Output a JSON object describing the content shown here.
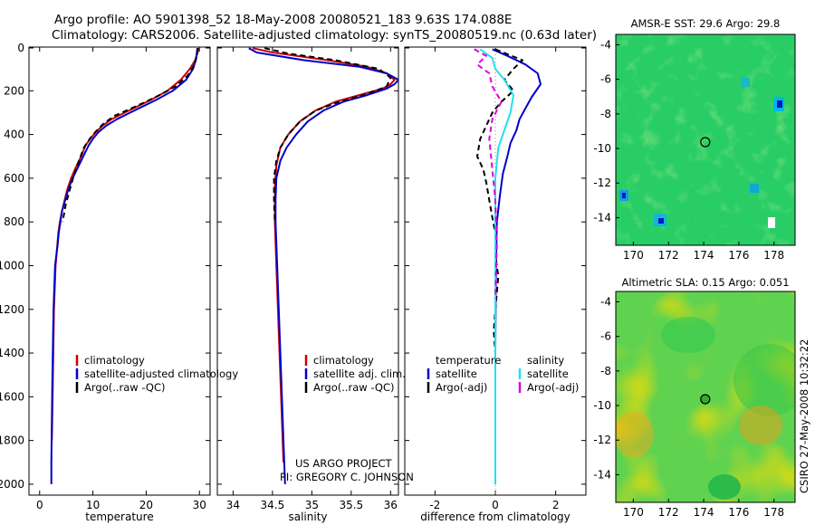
{
  "figure": {
    "title_line1": "Argo profile: AO 5901398_52 18-May-2008 20080521_183 9.63S 174.088E",
    "title_line2": "Climatology: CARS2006. Satellite-adjusted climatology: synTS_20080519.nc (0.63d later)",
    "footer_project": "US ARGO PROJECT",
    "footer_pi": "PI: GREGORY C. JOHNSON",
    "credit_vertical": "CSIRO 27-May-2008 10:32:22"
  },
  "colors": {
    "climatology": "#cc0000",
    "satellite": "#0000cc",
    "argo": "#000000",
    "argo_adj": "#dd00dd",
    "sat_salinity": "#22e0ee",
    "zero_line": "#888888"
  },
  "chart_data": [
    {
      "id": "temperature",
      "type": "line",
      "xlabel": "temperature",
      "xlim": [
        -2,
        32
      ],
      "ylim": [
        2050,
        0
      ],
      "yticks": [
        0,
        200,
        400,
        600,
        800,
        1000,
        1200,
        1400,
        1600,
        1800,
        2000
      ],
      "xticks": [
        0,
        10,
        20,
        30
      ],
      "legend": [
        "climatology",
        "satellite-adjusted climatology",
        "Argo(..raw -QC)"
      ],
      "series": [
        {
          "name": "climatology",
          "color_key": "climatology",
          "dash": "",
          "x": [
            29.8,
            29.6,
            29.2,
            28.2,
            26.5,
            24.0,
            21.0,
            18.5,
            16.0,
            13.5,
            11.8,
            10.5,
            9.5,
            8.6,
            7.8,
            6.8,
            5.9,
            5.2,
            4.7,
            4.2,
            3.8,
            3.5,
            3.0,
            2.7,
            2.5,
            2.3
          ],
          "y": [
            5,
            30,
            60,
            100,
            150,
            200,
            240,
            270,
            300,
            330,
            360,
            390,
            420,
            450,
            500,
            550,
            600,
            650,
            700,
            750,
            800,
            850,
            1000,
            1200,
            1500,
            1800
          ]
        },
        {
          "name": "satellite",
          "color_key": "satellite",
          "dash": "",
          "x": [
            29.6,
            29.5,
            29.3,
            28.8,
            27.5,
            25.0,
            22.0,
            19.5,
            17.0,
            14.5,
            12.5,
            11.0,
            10.0,
            9.2,
            8.2,
            7.2,
            6.2,
            5.4,
            4.8,
            4.2,
            3.9,
            3.6,
            3.4,
            2.9,
            2.6,
            2.4,
            2.3,
            2.2,
            2.2
          ],
          "y": [
            5,
            30,
            60,
            100,
            150,
            200,
            240,
            270,
            300,
            330,
            360,
            390,
            420,
            450,
            500,
            550,
            600,
            650,
            700,
            750,
            800,
            850,
            900,
            1000,
            1200,
            1500,
            1700,
            1900,
            2000
          ]
        },
        {
          "name": "Argo(..raw -QC)",
          "color_key": "argo",
          "dash": "6,4",
          "x": [
            29.7,
            29.6,
            29.1,
            27.8,
            25.5,
            22.5,
            19.5,
            16.8,
            14.0,
            12.0,
            10.6,
            9.4,
            8.3,
            7.4,
            6.5,
            5.8,
            4.9,
            4.3
          ],
          "y": [
            5,
            30,
            80,
            130,
            180,
            220,
            255,
            285,
            315,
            350,
            385,
            420,
            460,
            520,
            580,
            640,
            720,
            800
          ]
        }
      ]
    },
    {
      "id": "salinity",
      "type": "line",
      "xlabel": "salinity",
      "xlim": [
        33.8,
        36.1
      ],
      "ylim": [
        2050,
        0
      ],
      "xticks": [
        34,
        34.5,
        35,
        35.5,
        36
      ],
      "legend": [
        "climatology",
        "satellite adj. clim.",
        "Argo(..raw -QC)"
      ],
      "series": [
        {
          "name": "climatology",
          "color_key": "climatology",
          "dash": "",
          "x": [
            34.25,
            34.5,
            35.2,
            35.7,
            35.95,
            36.05,
            36.0,
            35.9,
            35.6,
            35.3,
            35.05,
            34.85,
            34.7,
            34.6,
            34.55,
            34.53,
            34.53,
            34.55,
            34.58,
            34.61,
            34.64
          ],
          "y": [
            5,
            25,
            60,
            90,
            120,
            150,
            170,
            190,
            220,
            250,
            290,
            340,
            400,
            460,
            540,
            640,
            800,
            1000,
            1300,
            1600,
            1900
          ]
        },
        {
          "name": "satellite",
          "color_key": "satellite",
          "dash": "",
          "x": [
            34.2,
            34.3,
            34.9,
            35.6,
            35.95,
            36.1,
            36.05,
            35.95,
            35.7,
            35.4,
            35.15,
            34.95,
            34.8,
            34.68,
            34.6,
            34.55,
            34.54,
            34.54,
            34.56,
            34.59,
            34.62,
            34.65,
            34.66
          ],
          "y": [
            5,
            25,
            60,
            90,
            120,
            150,
            170,
            190,
            220,
            250,
            290,
            340,
            400,
            460,
            520,
            600,
            700,
            800,
            1000,
            1300,
            1600,
            1900,
            2000
          ]
        },
        {
          "name": "Argo(..raw -QC)",
          "color_key": "argo",
          "dash": "6,4",
          "x": [
            34.4,
            34.7,
            35.3,
            35.85,
            36.0,
            35.95,
            35.7,
            35.35,
            35.05,
            34.85,
            34.7,
            34.6,
            34.55,
            34.52,
            34.52,
            34.53
          ],
          "y": [
            5,
            30,
            60,
            100,
            140,
            180,
            215,
            250,
            290,
            340,
            400,
            460,
            520,
            600,
            700,
            800
          ]
        }
      ]
    },
    {
      "id": "difference",
      "type": "line",
      "xlabel": "difference from climatology",
      "xlim": [
        -3,
        3
      ],
      "ylim": [
        2050,
        0
      ],
      "xticks": [
        -2,
        0,
        2
      ],
      "legend_left_title": "temperature",
      "legend_left": [
        "satellite",
        "Argo(-adj)"
      ],
      "legend_right_title": "salinity",
      "legend_right": [
        "satellite",
        "Argo(-adj)"
      ],
      "series": [
        {
          "name": "temperature satellite",
          "color_key": "satellite",
          "dash": "",
          "x": [
            -0.1,
            0.4,
            1.0,
            1.4,
            1.5,
            1.2,
            1.0,
            0.8,
            0.7,
            0.5,
            0.4,
            0.25,
            0.15,
            0.05,
            0.02,
            0.0,
            0.0
          ],
          "y": [
            10,
            40,
            80,
            120,
            170,
            230,
            280,
            330,
            380,
            440,
            500,
            580,
            680,
            800,
            1000,
            1400,
            2000
          ]
        },
        {
          "name": "temperature Argo(-adj)",
          "color_key": "argo",
          "dash": "6,4",
          "x": [
            0.0,
            0.9,
            0.6,
            0.3,
            0.6,
            0.2,
            -0.1,
            -0.3,
            -0.5,
            -0.6,
            -0.4,
            -0.3,
            -0.2,
            -0.1,
            0.0,
            0.0,
            0.1,
            0.0,
            -0.05,
            0.0
          ],
          "y": [
            10,
            60,
            100,
            150,
            200,
            250,
            300,
            360,
            420,
            500,
            560,
            620,
            700,
            780,
            850,
            950,
            1050,
            1200,
            1300,
            1400
          ]
        },
        {
          "name": "salinity satellite",
          "color_key": "sat_salinity",
          "dash": "",
          "x": [
            -0.5,
            -0.1,
            0.0,
            0.3,
            0.6,
            0.5,
            0.3,
            0.1,
            0.0,
            0.0,
            0.0,
            0.0,
            0.0
          ],
          "y": [
            10,
            50,
            100,
            150,
            220,
            300,
            380,
            460,
            600,
            800,
            1200,
            1600,
            2000
          ]
        },
        {
          "name": "salinity Argo(-adj)",
          "color_key": "argo_adj",
          "dash": "6,4",
          "x": [
            -0.7,
            -0.3,
            -0.6,
            -0.2,
            -0.1,
            0.2,
            -0.1,
            -0.2,
            -0.1,
            0.0,
            0.05,
            0.0
          ],
          "y": [
            10,
            40,
            80,
            120,
            180,
            250,
            330,
            420,
            560,
            700,
            900,
            1150
          ]
        }
      ]
    },
    {
      "id": "sst_map",
      "type": "heatmap",
      "title": "AMSR-E SST: 29.6 Argo: 29.8",
      "xlim": [
        169,
        179.2
      ],
      "ylim": [
        -15.6,
        -3.4
      ],
      "xticks": [
        170,
        172,
        174,
        176,
        178
      ],
      "yticks": [
        -4,
        -6,
        -8,
        -10,
        -12,
        -14
      ],
      "float_lon": 174.088,
      "float_lat": -9.63
    },
    {
      "id": "sla_map",
      "type": "heatmap",
      "title": "Altimetric SLA: 0.15 Argo: 0.051",
      "xlim": [
        169,
        179.2
      ],
      "ylim": [
        -15.6,
        -3.4
      ],
      "xticks": [
        170,
        172,
        174,
        176,
        178
      ],
      "yticks": [
        -4,
        -6,
        -8,
        -10,
        -12,
        -14
      ],
      "float_lon": 174.088,
      "float_lat": -9.63
    }
  ]
}
